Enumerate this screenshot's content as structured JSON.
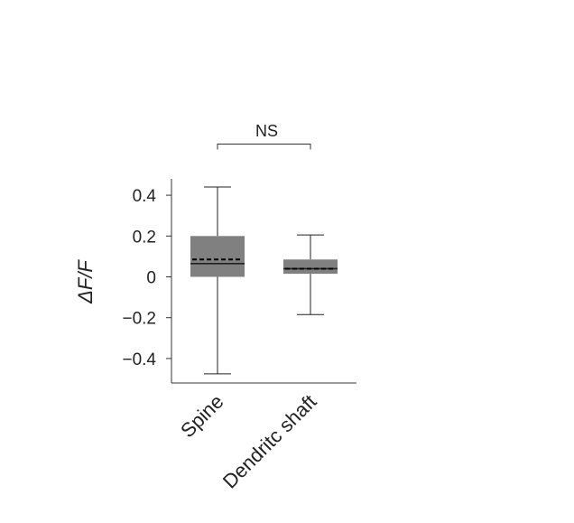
{
  "chart_data": {
    "type": "box",
    "ylabel": "ΔF/F",
    "yticks": [
      0.4,
      0.2,
      0,
      -0.2,
      -0.4
    ],
    "ytick_labels": [
      "0.4",
      "0.2",
      "0",
      "−0.2",
      "−0.4"
    ],
    "ylim": [
      -0.52,
      0.48
    ],
    "categories": [
      "Spine",
      "Dendritc shaft"
    ],
    "boxes": [
      {
        "category": "Spine",
        "whisker_low": -0.475,
        "q1": 0.0,
        "median": 0.065,
        "mean": 0.085,
        "q3": 0.2,
        "whisker_high": 0.44
      },
      {
        "category": "Dendritc shaft",
        "whisker_low": -0.185,
        "q1": 0.015,
        "median": 0.04,
        "mean": 0.04,
        "q3": 0.085,
        "whisker_high": 0.205
      }
    ],
    "significance": {
      "label": "NS",
      "between": [
        "Spine",
        "Dendritc shaft"
      ]
    },
    "colors": {
      "box_fill": "#808080",
      "line": "#222222",
      "axis": "#333333"
    },
    "legend": "none",
    "grid": false
  }
}
